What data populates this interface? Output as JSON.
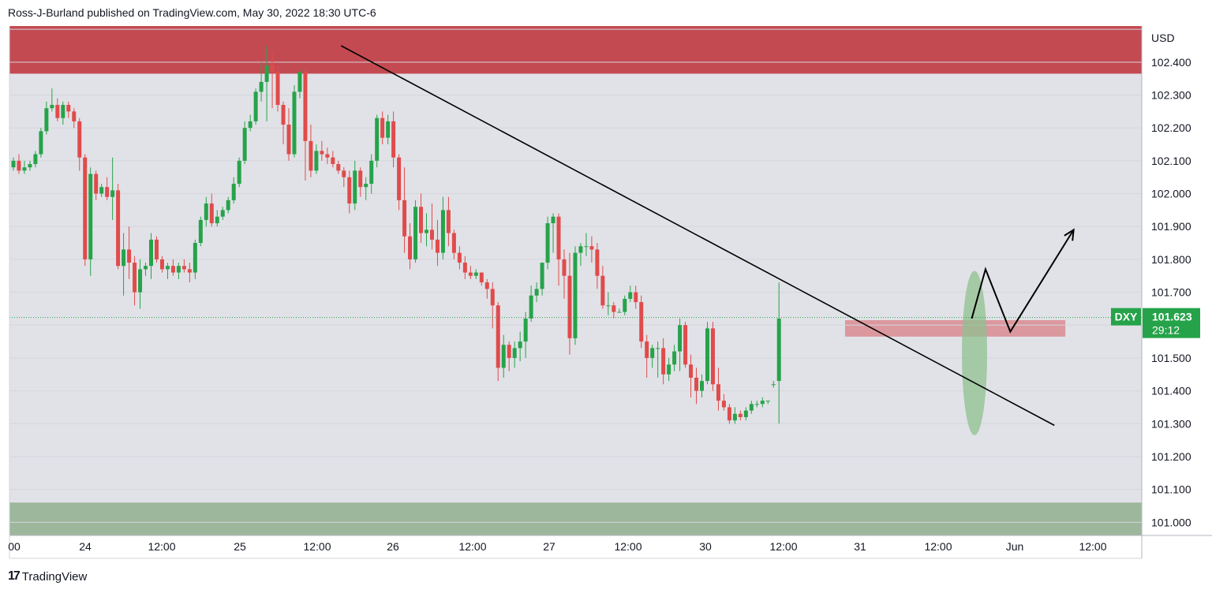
{
  "header": {
    "text": "Ross-J-Burland published on TradingView.com, May 30, 2022 18:30 UTC-6"
  },
  "footer": {
    "logo": "17",
    "brand": "TradingView"
  },
  "colors": {
    "up": "#26a34a",
    "down": "#e04b4b",
    "resistance_zone": "#c44a52",
    "support_zone": "#9db79d",
    "mid_zone": "#d98b90",
    "plot_bg": "#e1e2e7",
    "tag": "#26a34a",
    "ellipse": "#8fc08f"
  },
  "chart_data": {
    "type": "candlestick",
    "symbol": "DXY",
    "currency": "USD",
    "last_price": "101.623",
    "countdown": "29:12",
    "ylim": [
      100.96,
      102.51
    ],
    "y_ticks": [
      "101.000",
      "101.100",
      "101.200",
      "101.300",
      "101.400",
      "101.500",
      "101.600",
      "101.700",
      "101.800",
      "101.900",
      "102.000",
      "102.100",
      "102.200",
      "102.300",
      "102.400"
    ],
    "x_ticks": [
      "00",
      "24",
      "12:00",
      "25",
      "12:00",
      "26",
      "12:00",
      "27",
      "12:00",
      "30",
      "12:00",
      "31",
      "12:00",
      "Jun",
      "12:00"
    ],
    "zones": [
      {
        "kind": "resistance",
        "from": 102.365,
        "to": 102.51
      },
      {
        "kind": "support",
        "from": 100.96,
        "to": 101.06
      },
      {
        "kind": "local",
        "from": 101.565,
        "to": 101.615,
        "x_from_index": 151,
        "x_to_index": 191
      }
    ],
    "trendline": {
      "from": {
        "index": 59.5,
        "price": 102.45
      },
      "to": {
        "index": 189,
        "price": 101.295
      }
    },
    "projection_path": [
      {
        "index": 174,
        "price": 101.62
      },
      {
        "index": 176.5,
        "price": 101.77
      },
      {
        "index": 181,
        "price": 101.58
      },
      {
        "index": 192.5,
        "price": 101.89
      }
    ],
    "highlight": {
      "index": 174.5,
      "price": 101.515,
      "price_half_height": 0.25
    },
    "candles": [
      [
        102.08,
        102.11,
        102.07,
        102.1
      ],
      [
        102.1,
        102.12,
        102.06,
        102.07
      ],
      [
        102.07,
        102.1,
        102.06,
        102.08
      ],
      [
        102.08,
        102.1,
        102.07,
        102.09
      ],
      [
        102.09,
        102.13,
        102.08,
        102.12
      ],
      [
        102.12,
        102.2,
        102.11,
        102.19
      ],
      [
        102.19,
        102.28,
        102.18,
        102.26
      ],
      [
        102.26,
        102.32,
        102.25,
        102.27
      ],
      [
        102.27,
        102.29,
        102.22,
        102.23
      ],
      [
        102.23,
        102.28,
        102.21,
        102.27
      ],
      [
        102.27,
        102.28,
        102.23,
        102.25
      ],
      [
        102.25,
        102.26,
        102.2,
        102.22
      ],
      [
        102.22,
        102.23,
        102.07,
        102.11
      ],
      [
        102.11,
        102.12,
        101.78,
        101.8
      ],
      [
        101.8,
        102.08,
        101.75,
        102.06
      ],
      [
        102.06,
        102.07,
        101.98,
        102.0
      ],
      [
        102.0,
        102.03,
        101.99,
        102.02
      ],
      [
        102.02,
        102.05,
        101.98,
        101.99
      ],
      [
        101.99,
        102.11,
        101.92,
        102.01
      ],
      [
        102.01,
        102.03,
        101.77,
        101.78
      ],
      [
        101.78,
        101.88,
        101.69,
        101.83
      ],
      [
        101.83,
        101.9,
        101.74,
        101.79
      ],
      [
        101.79,
        101.81,
        101.66,
        101.7
      ],
      [
        101.7,
        101.8,
        101.65,
        101.77
      ],
      [
        101.77,
        101.79,
        101.75,
        101.78
      ],
      [
        101.78,
        101.88,
        101.74,
        101.86
      ],
      [
        101.86,
        101.87,
        101.79,
        101.8
      ],
      [
        101.8,
        101.81,
        101.76,
        101.77
      ],
      [
        101.77,
        101.79,
        101.74,
        101.78
      ],
      [
        101.78,
        101.8,
        101.75,
        101.76
      ],
      [
        101.76,
        101.79,
        101.74,
        101.78
      ],
      [
        101.78,
        101.8,
        101.76,
        101.77
      ],
      [
        101.77,
        101.79,
        101.73,
        101.76
      ],
      [
        101.76,
        101.86,
        101.74,
        101.85
      ],
      [
        101.85,
        101.93,
        101.84,
        101.92
      ],
      [
        101.92,
        101.99,
        101.9,
        101.97
      ],
      [
        101.97,
        102.0,
        101.9,
        101.91
      ],
      [
        101.91,
        101.95,
        101.9,
        101.93
      ],
      [
        101.93,
        101.96,
        101.92,
        101.95
      ],
      [
        101.95,
        101.99,
        101.94,
        101.98
      ],
      [
        101.98,
        102.05,
        101.97,
        102.03
      ],
      [
        102.03,
        102.11,
        102.02,
        102.1
      ],
      [
        102.1,
        102.22,
        102.09,
        102.2
      ],
      [
        102.2,
        102.24,
        102.19,
        102.22
      ],
      [
        102.22,
        102.32,
        102.21,
        102.31
      ],
      [
        102.31,
        102.4,
        102.28,
        102.34
      ],
      [
        102.34,
        102.45,
        102.22,
        102.39
      ],
      [
        102.39,
        102.43,
        102.26,
        102.37
      ],
      [
        102.37,
        102.39,
        102.25,
        102.27
      ],
      [
        102.27,
        102.28,
        102.15,
        102.21
      ],
      [
        102.21,
        102.26,
        102.1,
        102.12
      ],
      [
        102.12,
        102.33,
        102.11,
        102.31
      ],
      [
        102.31,
        102.38,
        102.29,
        102.37
      ],
      [
        102.37,
        102.38,
        102.04,
        102.16
      ],
      [
        102.16,
        102.21,
        102.05,
        102.07
      ],
      [
        102.07,
        102.15,
        102.06,
        102.13
      ],
      [
        102.13,
        102.16,
        102.1,
        102.12
      ],
      [
        102.12,
        102.14,
        102.09,
        102.11
      ],
      [
        102.11,
        102.13,
        102.08,
        102.09
      ],
      [
        102.09,
        102.1,
        102.06,
        102.07
      ],
      [
        102.07,
        102.08,
        102.02,
        102.05
      ],
      [
        102.05,
        102.07,
        101.94,
        101.97
      ],
      [
        101.97,
        102.1,
        101.95,
        102.07
      ],
      [
        102.07,
        102.08,
        101.99,
        102.02
      ],
      [
        102.02,
        102.05,
        101.98,
        102.03
      ],
      [
        102.03,
        102.12,
        102.0,
        102.1
      ],
      [
        102.1,
        102.24,
        102.08,
        102.23
      ],
      [
        102.23,
        102.25,
        102.15,
        102.17
      ],
      [
        102.17,
        102.24,
        102.15,
        102.22
      ],
      [
        102.22,
        102.25,
        102.08,
        102.11
      ],
      [
        102.11,
        102.12,
        101.95,
        101.98
      ],
      [
        101.98,
        102.08,
        101.82,
        101.87
      ],
      [
        101.87,
        101.91,
        101.77,
        101.8
      ],
      [
        101.8,
        101.98,
        101.79,
        101.96
      ],
      [
        101.96,
        102.0,
        101.85,
        101.88
      ],
      [
        101.88,
        101.94,
        101.84,
        101.89
      ],
      [
        101.89,
        101.97,
        101.83,
        101.86
      ],
      [
        101.86,
        101.92,
        101.78,
        101.82
      ],
      [
        101.82,
        101.99,
        101.8,
        101.95
      ],
      [
        101.95,
        101.99,
        101.84,
        101.88
      ],
      [
        101.88,
        101.89,
        101.8,
        101.82
      ],
      [
        101.82,
        101.84,
        101.77,
        101.79
      ],
      [
        101.79,
        101.81,
        101.74,
        101.76
      ],
      [
        101.76,
        101.78,
        101.74,
        101.75
      ],
      [
        101.75,
        101.77,
        101.74,
        101.76
      ],
      [
        101.76,
        101.76,
        101.72,
        101.73
      ],
      [
        101.73,
        101.74,
        101.68,
        101.71
      ],
      [
        101.71,
        101.73,
        101.59,
        101.66
      ],
      [
        101.66,
        101.67,
        101.43,
        101.47
      ],
      [
        101.47,
        101.57,
        101.44,
        101.54
      ],
      [
        101.54,
        101.55,
        101.46,
        101.5
      ],
      [
        101.5,
        101.55,
        101.47,
        101.53
      ],
      [
        101.53,
        101.58,
        101.49,
        101.55
      ],
      [
        101.55,
        101.64,
        101.5,
        101.62
      ],
      [
        101.62,
        101.72,
        101.61,
        101.69
      ],
      [
        101.69,
        101.73,
        101.67,
        101.71
      ],
      [
        101.71,
        101.78,
        101.69,
        101.79
      ],
      [
        101.79,
        101.93,
        101.77,
        101.91
      ],
      [
        101.91,
        101.94,
        101.82,
        101.93
      ],
      [
        101.93,
        101.94,
        101.72,
        101.8
      ],
      [
        101.8,
        101.83,
        101.68,
        101.75
      ],
      [
        101.75,
        101.82,
        101.51,
        101.56
      ],
      [
        101.56,
        101.84,
        101.54,
        101.82
      ],
      [
        101.82,
        101.85,
        101.78,
        101.84
      ],
      [
        101.84,
        101.88,
        101.81,
        101.84
      ],
      [
        101.84,
        101.87,
        101.79,
        101.83
      ],
      [
        101.83,
        101.85,
        101.71,
        101.75
      ],
      [
        101.75,
        101.78,
        101.65,
        101.66
      ],
      [
        101.66,
        101.7,
        101.63,
        101.66
      ],
      [
        101.66,
        101.67,
        101.62,
        101.64
      ],
      [
        101.64,
        101.65,
        101.64,
        101.64
      ],
      [
        101.64,
        101.69,
        101.63,
        101.68
      ],
      [
        101.68,
        101.72,
        101.67,
        101.7
      ],
      [
        101.7,
        101.72,
        101.65,
        101.67
      ],
      [
        101.67,
        101.69,
        101.53,
        101.55
      ],
      [
        101.55,
        101.57,
        101.44,
        101.5
      ],
      [
        101.5,
        101.54,
        101.47,
        101.53
      ],
      [
        101.53,
        101.55,
        101.44,
        101.53
      ],
      [
        101.53,
        101.56,
        101.42,
        101.45
      ],
      [
        101.45,
        101.5,
        101.43,
        101.48
      ],
      [
        101.48,
        101.54,
        101.46,
        101.52
      ],
      [
        101.52,
        101.62,
        101.46,
        101.6
      ],
      [
        101.6,
        101.61,
        101.47,
        101.48
      ],
      [
        101.48,
        101.51,
        101.38,
        101.44
      ],
      [
        101.44,
        101.47,
        101.36,
        101.4
      ],
      [
        101.4,
        101.45,
        101.38,
        101.43
      ],
      [
        101.43,
        101.61,
        101.42,
        101.59
      ],
      [
        101.59,
        101.61,
        101.4,
        101.42
      ],
      [
        101.42,
        101.47,
        101.34,
        101.37
      ],
      [
        101.37,
        101.39,
        101.34,
        101.35
      ],
      [
        101.35,
        101.36,
        101.3,
        101.31
      ],
      [
        101.31,
        101.35,
        101.3,
        101.33
      ],
      [
        101.33,
        101.34,
        101.31,
        101.32
      ],
      [
        101.32,
        101.35,
        101.31,
        101.34
      ],
      [
        101.34,
        101.37,
        101.33,
        101.36
      ],
      [
        101.36,
        101.37,
        101.35,
        101.36
      ],
      [
        101.36,
        101.38,
        101.35,
        101.37
      ],
      [
        101.37,
        101.37,
        101.36,
        101.37
      ],
      [
        101.42,
        101.43,
        101.41,
        101.42
      ],
      [
        101.43,
        101.73,
        101.3,
        101.62
      ]
    ]
  }
}
